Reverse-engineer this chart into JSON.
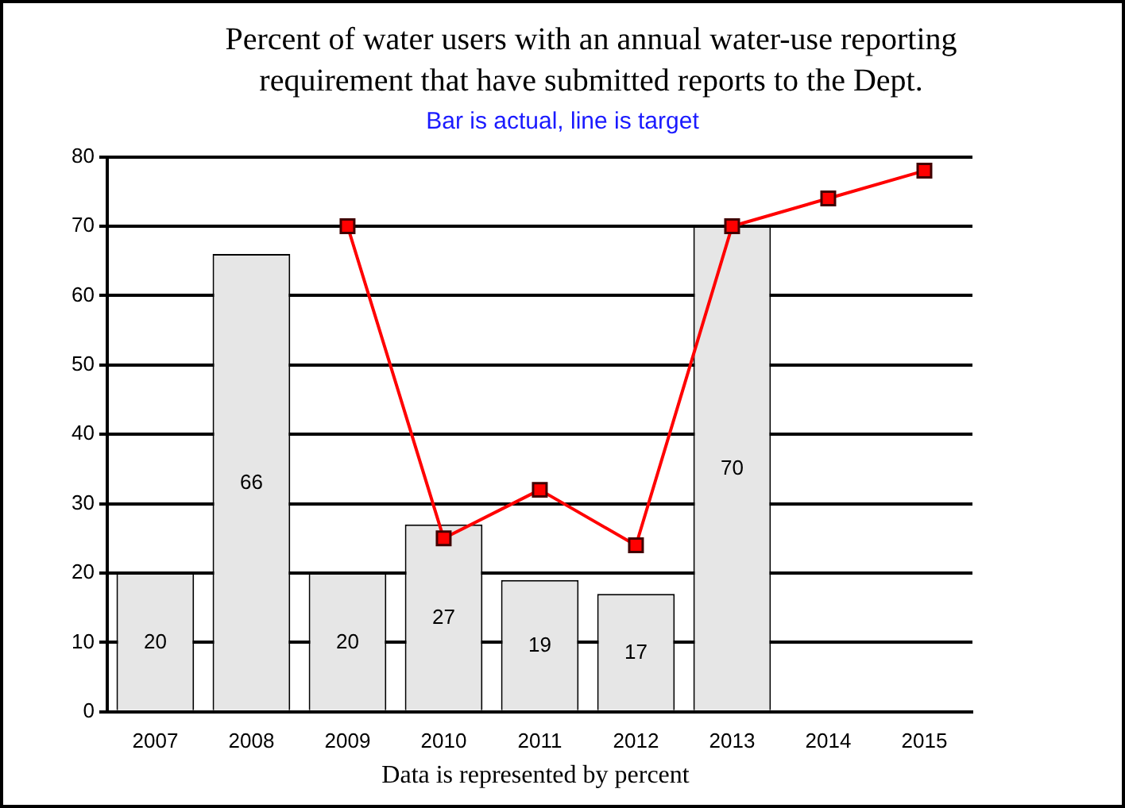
{
  "chart_data": {
    "type": "bar",
    "title": "Percent of water users with an annual water-use reporting requirement that have submitted reports to the Dept.",
    "subtitle": "Bar is actual, line is target",
    "categories": [
      "2007",
      "2008",
      "2009",
      "2010",
      "2011",
      "2012",
      "2013",
      "2014",
      "2015"
    ],
    "series": [
      {
        "color": "#e6e6e6",
        "values": [
          20,
          66,
          20,
          27,
          19,
          17,
          70,
          null,
          null
        ],
        "value_labels": [
          "20",
          "66",
          "20",
          "27",
          "19",
          "17",
          "70",
          null,
          null
        ]
      },
      {
        "type": "line",
        "color": "#ff0000",
        "values": [
          null,
          null,
          70,
          25,
          32,
          24,
          70,
          74,
          78
        ],
        "marker": "square",
        "line_style": "solid"
      }
    ],
    "ylim": [
      0,
      80
    ],
    "yticks": [
      0,
      10,
      20,
      30,
      40,
      50,
      60,
      70,
      80
    ],
    "grid": "y",
    "legend": false,
    "annotations": [
      "Data is represented by percent"
    ]
  }
}
